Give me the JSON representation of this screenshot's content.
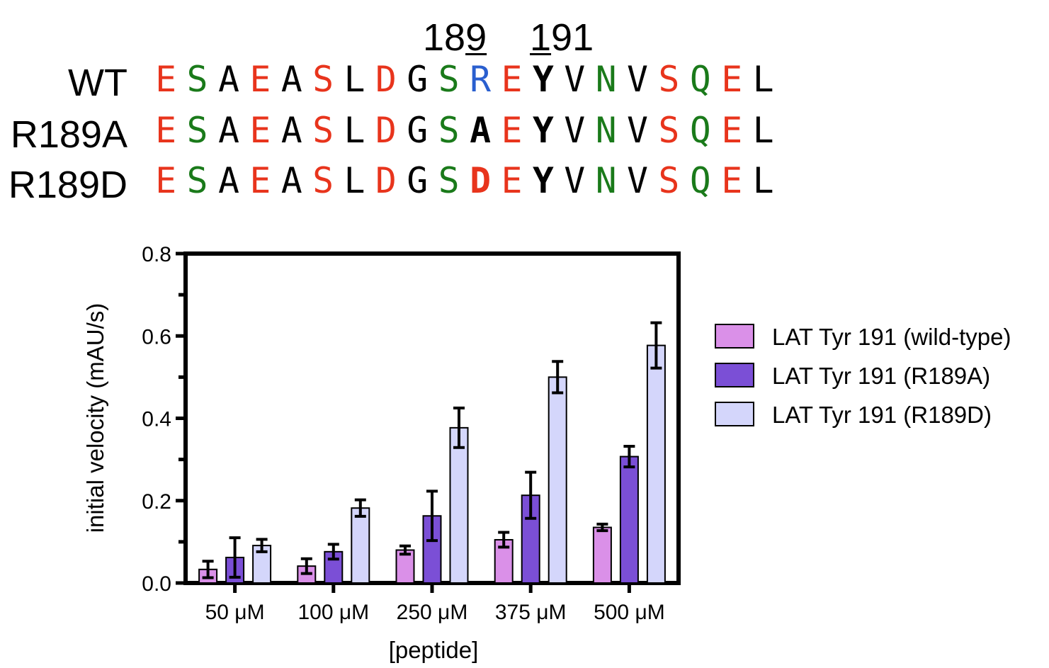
{
  "sequence": {
    "position_labels": [
      {
        "prefix": "18",
        "underlined": "9",
        "suffix": ""
      },
      {
        "prefix": "",
        "underlined": "1",
        "suffix": "91"
      }
    ],
    "rows": [
      {
        "label": "WT",
        "residues": [
          {
            "c": "E",
            "color": "#e8341c",
            "bold": false
          },
          {
            "c": "S",
            "color": "#1a7a1a",
            "bold": false
          },
          {
            "c": "A",
            "color": "#000000",
            "bold": false
          },
          {
            "c": "E",
            "color": "#e8341c",
            "bold": false
          },
          {
            "c": "A",
            "color": "#000000",
            "bold": false
          },
          {
            "c": "S",
            "color": "#e8341c",
            "bold": false
          },
          {
            "c": "L",
            "color": "#000000",
            "bold": false
          },
          {
            "c": "D",
            "color": "#e8341c",
            "bold": false
          },
          {
            "c": "G",
            "color": "#000000",
            "bold": false
          },
          {
            "c": "S",
            "color": "#1a7a1a",
            "bold": false
          },
          {
            "c": "R",
            "color": "#2a5fcf",
            "bold": false
          },
          {
            "c": "E",
            "color": "#e8341c",
            "bold": false
          },
          {
            "c": "Y",
            "color": "#000000",
            "bold": true
          },
          {
            "c": "V",
            "color": "#000000",
            "bold": false
          },
          {
            "c": "N",
            "color": "#1a7a1a",
            "bold": false
          },
          {
            "c": "V",
            "color": "#000000",
            "bold": false
          },
          {
            "c": "S",
            "color": "#e8341c",
            "bold": false
          },
          {
            "c": "Q",
            "color": "#1a7a1a",
            "bold": false
          },
          {
            "c": "E",
            "color": "#e8341c",
            "bold": false
          },
          {
            "c": "L",
            "color": "#000000",
            "bold": false
          }
        ]
      },
      {
        "label": "R189A",
        "residues": [
          {
            "c": "E",
            "color": "#e8341c",
            "bold": false
          },
          {
            "c": "S",
            "color": "#1a7a1a",
            "bold": false
          },
          {
            "c": "A",
            "color": "#000000",
            "bold": false
          },
          {
            "c": "E",
            "color": "#e8341c",
            "bold": false
          },
          {
            "c": "A",
            "color": "#000000",
            "bold": false
          },
          {
            "c": "S",
            "color": "#e8341c",
            "bold": false
          },
          {
            "c": "L",
            "color": "#000000",
            "bold": false
          },
          {
            "c": "D",
            "color": "#e8341c",
            "bold": false
          },
          {
            "c": "G",
            "color": "#000000",
            "bold": false
          },
          {
            "c": "S",
            "color": "#1a7a1a",
            "bold": false
          },
          {
            "c": "A",
            "color": "#000000",
            "bold": true
          },
          {
            "c": "E",
            "color": "#e8341c",
            "bold": false
          },
          {
            "c": "Y",
            "color": "#000000",
            "bold": true
          },
          {
            "c": "V",
            "color": "#000000",
            "bold": false
          },
          {
            "c": "N",
            "color": "#1a7a1a",
            "bold": false
          },
          {
            "c": "V",
            "color": "#000000",
            "bold": false
          },
          {
            "c": "S",
            "color": "#e8341c",
            "bold": false
          },
          {
            "c": "Q",
            "color": "#1a7a1a",
            "bold": false
          },
          {
            "c": "E",
            "color": "#e8341c",
            "bold": false
          },
          {
            "c": "L",
            "color": "#000000",
            "bold": false
          }
        ]
      },
      {
        "label": "R189D",
        "residues": [
          {
            "c": "E",
            "color": "#e8341c",
            "bold": false
          },
          {
            "c": "S",
            "color": "#1a7a1a",
            "bold": false
          },
          {
            "c": "A",
            "color": "#000000",
            "bold": false
          },
          {
            "c": "E",
            "color": "#e8341c",
            "bold": false
          },
          {
            "c": "A",
            "color": "#000000",
            "bold": false
          },
          {
            "c": "S",
            "color": "#e8341c",
            "bold": false
          },
          {
            "c": "L",
            "color": "#000000",
            "bold": false
          },
          {
            "c": "D",
            "color": "#e8341c",
            "bold": false
          },
          {
            "c": "G",
            "color": "#000000",
            "bold": false
          },
          {
            "c": "S",
            "color": "#1a7a1a",
            "bold": false
          },
          {
            "c": "D",
            "color": "#e8341c",
            "bold": true
          },
          {
            "c": "E",
            "color": "#e8341c",
            "bold": false
          },
          {
            "c": "Y",
            "color": "#000000",
            "bold": true
          },
          {
            "c": "V",
            "color": "#000000",
            "bold": false
          },
          {
            "c": "N",
            "color": "#1a7a1a",
            "bold": false
          },
          {
            "c": "V",
            "color": "#000000",
            "bold": false
          },
          {
            "c": "S",
            "color": "#e8341c",
            "bold": false
          },
          {
            "c": "Q",
            "color": "#1a7a1a",
            "bold": false
          },
          {
            "c": "E",
            "color": "#e8341c",
            "bold": false
          },
          {
            "c": "L",
            "color": "#000000",
            "bold": false
          }
        ]
      }
    ]
  },
  "chart_data": {
    "type": "bar",
    "title": "",
    "xlabel": "[peptide]",
    "ylabel": "initial velocity (mAU/s)",
    "ylim": [
      0,
      0.8
    ],
    "yticks": [
      "0.0",
      "0.2",
      "0.4",
      "0.6",
      "0.8"
    ],
    "categories": [
      "50 μM",
      "100 μM",
      "250 μM",
      "375 μM",
      "500 μM"
    ],
    "legend_position": "right",
    "grid": false,
    "series": [
      {
        "name": "LAT Tyr 191 (wild-type)",
        "color": "#da90e8",
        "values": [
          0.033,
          0.041,
          0.08,
          0.105,
          0.135
        ],
        "errors": [
          0.02,
          0.018,
          0.01,
          0.018,
          0.008
        ]
      },
      {
        "name": "LAT Tyr 191 (R189A)",
        "color": "#7b4fd6",
        "values": [
          0.062,
          0.076,
          0.163,
          0.213,
          0.307
        ],
        "errors": [
          0.048,
          0.018,
          0.06,
          0.056,
          0.025
        ]
      },
      {
        "name": "LAT Tyr 191 (R189D)",
        "color": "#d4d6fb",
        "values": [
          0.091,
          0.182,
          0.377,
          0.5,
          0.577
        ],
        "errors": [
          0.015,
          0.02,
          0.048,
          0.038,
          0.055
        ]
      }
    ]
  }
}
